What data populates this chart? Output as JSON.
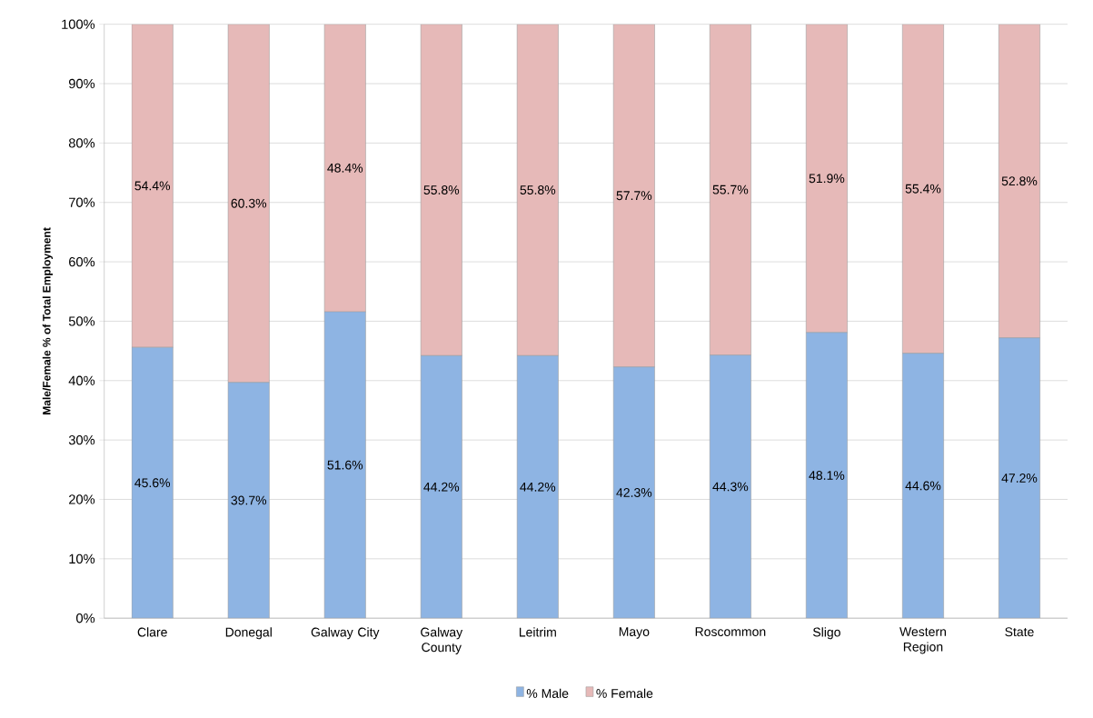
{
  "chart_data": {
    "type": "bar",
    "stacked": true,
    "ylabel": "Male/Female % of Total Employment",
    "categories": [
      "Clare",
      "Donegal",
      "Galway City",
      "Galway County",
      "Leitrim",
      "Mayo",
      "Roscommon",
      "Sligo",
      "Western Region",
      "State"
    ],
    "series": [
      {
        "name": "% Male",
        "color": "#8eb4e3",
        "values": [
          45.6,
          39.7,
          51.6,
          44.2,
          44.2,
          42.3,
          44.3,
          48.1,
          44.6,
          47.2
        ],
        "value_labels": [
          "45.6%",
          "39.7%",
          "51.6%",
          "44.2%",
          "44.2%",
          "42.3%",
          "44.3%",
          "48.1%",
          "44.6%",
          "47.2%"
        ]
      },
      {
        "name": "% Female",
        "color": "#e6b9b8",
        "values": [
          54.4,
          60.3,
          48.4,
          55.8,
          55.8,
          57.7,
          55.7,
          51.9,
          55.4,
          52.8
        ],
        "value_labels": [
          "54.4%",
          "60.3%",
          "48.4%",
          "55.8%",
          "55.8%",
          "57.7%",
          "55.7%",
          "51.9%",
          "55.4%",
          "52.8%"
        ]
      }
    ],
    "ylim": [
      0,
      100
    ],
    "yticks": [
      {
        "value": 0,
        "label": "0%"
      },
      {
        "value": 10,
        "label": "10%"
      },
      {
        "value": 20,
        "label": "20%"
      },
      {
        "value": 30,
        "label": "30%"
      },
      {
        "value": 40,
        "label": "40%"
      },
      {
        "value": 50,
        "label": "50%"
      },
      {
        "value": 60,
        "label": "60%"
      },
      {
        "value": 70,
        "label": "70%"
      },
      {
        "value": 80,
        "label": "80%"
      },
      {
        "value": 90,
        "label": "90%"
      },
      {
        "value": 100,
        "label": "100%"
      }
    ],
    "grid": "y",
    "legend": "bottom"
  }
}
